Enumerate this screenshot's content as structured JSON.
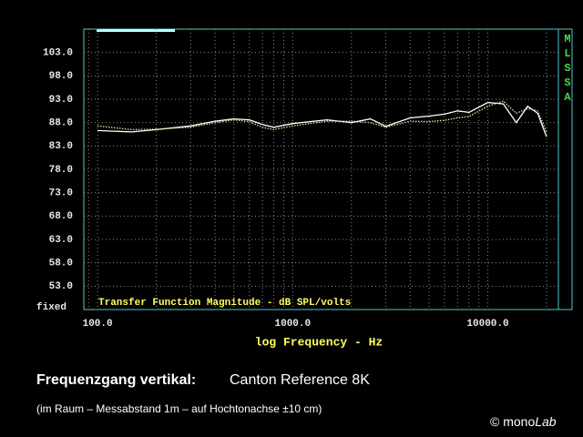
{
  "chart_data": {
    "type": "line",
    "title": "Frequenzgang vertikal:",
    "subtitle_name": "Canton Reference 8K",
    "subtitle": "(im Raum – Messabstand 1m – auf Hochtonachse ±10 cm)",
    "credit": "© mono",
    "credit_italic": "Lab",
    "side_label": "MLSSA",
    "scale_label": "fixed",
    "plot_label": "Transfer Function Magnitude - dB SPL/volts",
    "x_label": "log Frequency - Hz",
    "x_log": true,
    "grid": true,
    "x": [
      100,
      150,
      200,
      300,
      400,
      500,
      600,
      700,
      800,
      1000,
      1500,
      2000,
      2500,
      3000,
      4000,
      5000,
      6000,
      7000,
      8000,
      10000,
      12000,
      14000,
      16000,
      18000,
      20000
    ],
    "series": [
      {
        "color": "#ffffff",
        "values": [
          86.3,
          86.0,
          86.5,
          87.3,
          88.3,
          88.8,
          88.6,
          87.6,
          87.0,
          87.8,
          88.6,
          88.0,
          88.8,
          87.2,
          89.0,
          89.4,
          89.8,
          90.5,
          90.2,
          92.3,
          92.0,
          88.0,
          91.5,
          90.0,
          85.0
        ]
      },
      {
        "color": "#e8e0a0",
        "dotted": true,
        "values": [
          87.3,
          86.5,
          86.6,
          87.0,
          88.0,
          88.6,
          88.2,
          87.0,
          86.5,
          87.3,
          88.3,
          88.3,
          88.0,
          87.0,
          88.3,
          88.2,
          88.5,
          89.0,
          89.3,
          91.5,
          92.6,
          90.0,
          91.0,
          90.5,
          86.0
        ]
      }
    ],
    "xlim": [
      85,
      23000
    ],
    "xticks": [
      {
        "value": 100,
        "label": "100.0"
      },
      {
        "value": 1000,
        "label": "1000.0"
      },
      {
        "value": 10000,
        "label": "10000.0"
      }
    ],
    "ylim": [
      48,
      108
    ],
    "yticks": [
      {
        "value": 103,
        "label": "103.0"
      },
      {
        "value": 98,
        "label": "98.0"
      },
      {
        "value": 93,
        "label": "93.0"
      },
      {
        "value": 88,
        "label": "88.0"
      },
      {
        "value": 83,
        "label": "83.0"
      },
      {
        "value": 78,
        "label": "78.0"
      },
      {
        "value": 73,
        "label": "73.0"
      },
      {
        "value": 68,
        "label": "68.0"
      },
      {
        "value": 63,
        "label": "63.0"
      },
      {
        "value": 58,
        "label": "58.0"
      },
      {
        "value": 53,
        "label": "53.0"
      }
    ]
  }
}
